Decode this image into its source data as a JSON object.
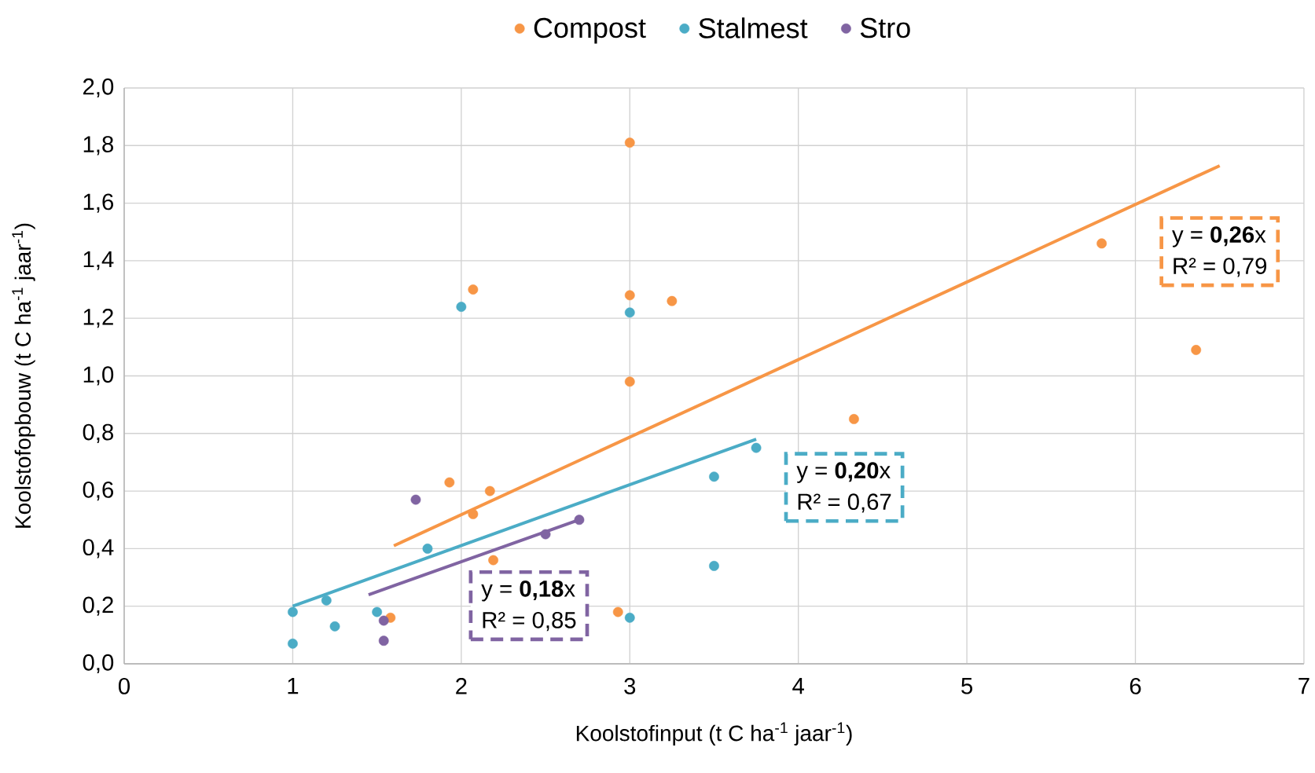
{
  "chart_data": {
    "type": "scatter",
    "xlabel": "Koolstofinput (t C ha$^{-1}$ jaar$^{-1}$)",
    "ylabel": "Koolstofopbouw (t C ha$^{-1}$ jaar$^{-1}$)",
    "xlim": [
      0,
      7
    ],
    "ylim": [
      0,
      2
    ],
    "xticks": [
      0,
      1,
      2,
      3,
      4,
      5,
      6,
      7
    ],
    "yticks": [
      {
        "value": 0,
        "label": "0,0"
      },
      {
        "value": 0.2,
        "label": "0,2"
      },
      {
        "value": 0.4,
        "label": "0,4"
      },
      {
        "value": 0.6,
        "label": "0,6"
      },
      {
        "value": 0.8,
        "label": "0,8"
      },
      {
        "value": 1.0,
        "label": "1,0"
      },
      {
        "value": 1.2,
        "label": "1,2"
      },
      {
        "value": 1.4,
        "label": "1,4"
      },
      {
        "value": 1.6,
        "label": "1,6"
      },
      {
        "value": 1.8,
        "label": "1,8"
      },
      {
        "value": 2.0,
        "label": "2,0"
      }
    ],
    "grid": true,
    "legend": "top",
    "series": [
      {
        "name": "Compost",
        "type": "scatter",
        "marker": "circle",
        "color": "#f79646",
        "x": [
          3.0,
          2.07,
          3.0,
          3.25,
          3.0,
          5.8,
          6.36,
          4.33,
          1.93,
          2.17,
          2.07,
          2.19,
          1.58,
          2.93
        ],
        "values": [
          1.81,
          1.3,
          1.28,
          1.26,
          0.98,
          1.46,
          1.09,
          0.85,
          0.63,
          0.6,
          0.52,
          0.36,
          0.16,
          0.18
        ]
      },
      {
        "name": "Stalmest",
        "type": "scatter",
        "marker": "circle",
        "color": "#4bacc6",
        "x": [
          1.0,
          1.0,
          1.2,
          1.25,
          1.5,
          1.8,
          2.0,
          3.0,
          3.0,
          3.5,
          3.5,
          3.75
        ],
        "values": [
          0.18,
          0.07,
          0.22,
          0.13,
          0.18,
          0.4,
          1.24,
          1.22,
          0.16,
          0.65,
          0.34,
          0.75
        ]
      },
      {
        "name": "Stro",
        "type": "scatter",
        "marker": "circle",
        "color": "#8064a2",
        "x": [
          1.73,
          1.54,
          1.54,
          2.5,
          2.7
        ],
        "values": [
          0.57,
          0.15,
          0.08,
          0.45,
          0.5
        ]
      },
      {
        "type": "line",
        "marker": "none",
        "color": "#f79646",
        "x": [
          1.6,
          6.5
        ],
        "values": [
          0.41,
          1.73
        ]
      },
      {
        "type": "line",
        "marker": "none",
        "color": "#4bacc6",
        "x": [
          1.0,
          3.75
        ],
        "values": [
          0.2,
          0.78
        ]
      },
      {
        "type": "line",
        "marker": "none",
        "color": "#8064a2",
        "x": [
          1.45,
          2.7
        ],
        "values": [
          0.24,
          0.5
        ]
      }
    ],
    "annotations": [
      "y = **0,26**x",
      "R² = 0,79",
      "y = **0,20**x",
      "R² = 0,67",
      "y = **0,18**x",
      "R² = 0,85"
    ]
  }
}
